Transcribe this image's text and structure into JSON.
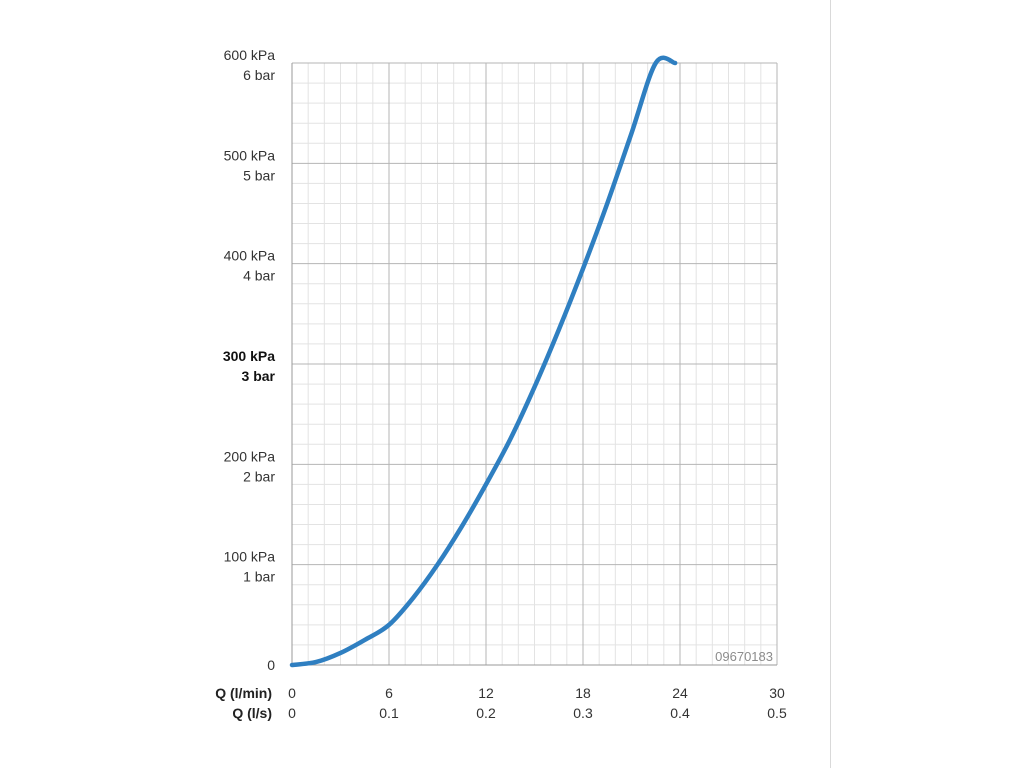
{
  "chart_data": {
    "type": "line",
    "title": "",
    "xlabel_primary": "Q (l/min)",
    "xlabel_secondary": "Q (l/s)",
    "xlim": [
      0,
      30
    ],
    "ylim": [
      0,
      600
    ],
    "x_ticks_lmin": [
      "0",
      "6",
      "12",
      "18",
      "24",
      "30"
    ],
    "x_ticks_ls": [
      "0",
      "0.1",
      "0.2",
      "0.3",
      "0.4",
      "0.5"
    ],
    "x_tick_values": [
      0,
      6,
      12,
      18,
      24,
      30
    ],
    "y_tick_values": [
      0,
      100,
      200,
      300,
      400,
      500,
      600
    ],
    "y_ticks_kpa": [
      "0",
      "100 kPa",
      "200 kPa",
      "300 kPa",
      "400 kPa",
      "500 kPa",
      "600 kPa"
    ],
    "y_ticks_bar": [
      "",
      "1 bar",
      "2 bar",
      "3 bar",
      "4 bar",
      "5 bar",
      "6 bar"
    ],
    "grid": true,
    "series": [
      {
        "color": "#2f7fc1",
        "x": [
          0,
          1.5,
          3,
          4.5,
          6,
          7.5,
          9,
          10.5,
          12,
          13.5,
          15,
          16.5,
          18,
          19.5,
          21,
          22.5,
          23.7
        ],
        "y": [
          0,
          3,
          12,
          25,
          40,
          67,
          100,
          138,
          180,
          225,
          277,
          334,
          395,
          460,
          530,
          600,
          600
        ]
      }
    ],
    "annotation": "09670183"
  },
  "colors": {
    "grid_minor": "#e3e3e3",
    "grid_major": "#b5b5b5",
    "axis": "#9a9a9a",
    "text": "#333333",
    "annotation": "#8c8c8c"
  }
}
